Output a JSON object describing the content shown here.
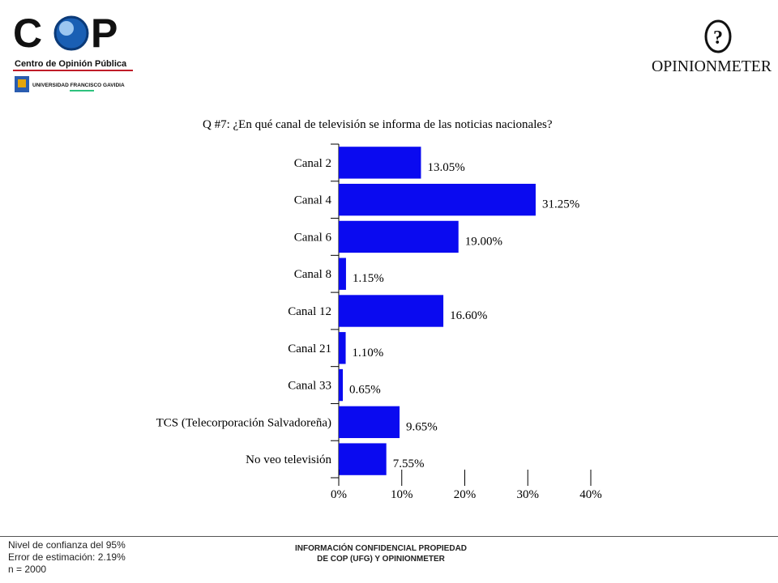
{
  "logos": {
    "cop_mark": "COP",
    "cop_subtitle": "Centro de Opinión Pública",
    "ufg_name": "UNIVERSIDAD FRANCISCO GAVIDIA",
    "ufg_short": "UFG",
    "opinionmeter": "OPINIONMETER"
  },
  "chart_data": {
    "type": "bar",
    "orientation": "horizontal",
    "title": "Q #7: ¿En qué canal de televisión se informa de las noticias nacionales?",
    "categories": [
      "Canal 2",
      "Canal 4",
      "Canal 6",
      "Canal 8",
      "Canal 12",
      "Canal 21",
      "Canal 33",
      "TCS (Telecorporación Salvadoreña)",
      "No veo televisión"
    ],
    "values": [
      13.05,
      31.25,
      19.0,
      1.15,
      16.6,
      1.1,
      0.65,
      9.65,
      7.55
    ],
    "value_labels": [
      "13.05%",
      "31.25%",
      "19.00%",
      "1.15%",
      "16.60%",
      "1.10%",
      "0.65%",
      "9.65%",
      "7.55%"
    ],
    "xlim": [
      0,
      40
    ],
    "xticks": [
      0,
      10,
      20,
      30,
      40
    ],
    "xtick_labels": [
      "0%",
      "10%",
      "20%",
      "30%",
      "40%"
    ],
    "bar_color": "#0a0af0",
    "grid": false
  },
  "footer": {
    "left_lines": [
      "Nivel de confianza del 95%",
      "Error de estimación: 2.19%",
      "n = 2000"
    ],
    "center_lines": [
      "INFORMACIÓN CONFIDENCIAL PROPIEDAD",
      "DE COP (UFG) Y OPINIONMETER"
    ]
  }
}
